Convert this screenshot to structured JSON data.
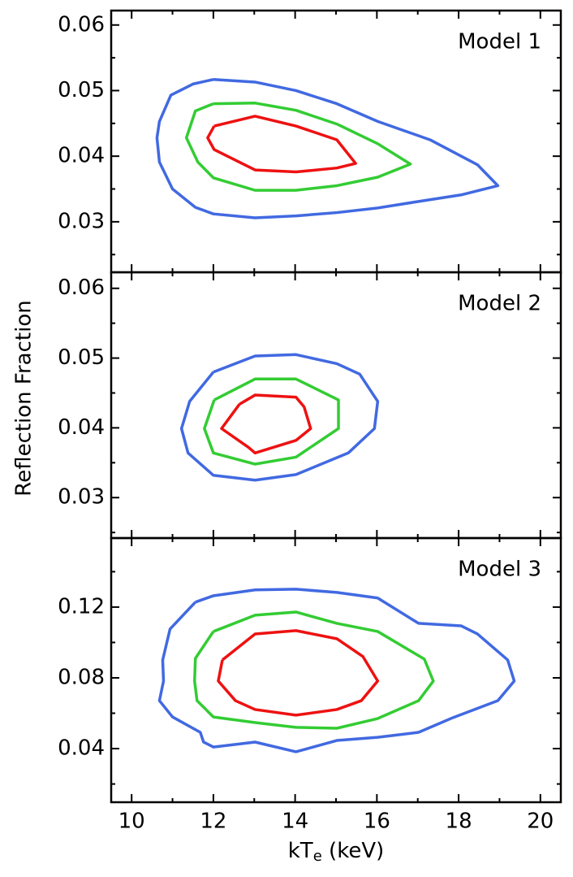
{
  "chart_data": [
    {
      "type": "contour",
      "annotation": "Model 1",
      "xlim": [
        9.5,
        20.5
      ],
      "xticks": [
        10,
        12,
        14,
        16,
        18,
        20
      ],
      "xminorticks": [
        11,
        13,
        15,
        17,
        19
      ],
      "ylim": [
        0.0223,
        0.0622
      ],
      "yticks": [
        0.03,
        0.04,
        0.05,
        0.06
      ],
      "yminorticks": [
        0.025,
        0.035,
        0.045,
        0.055
      ],
      "series": [
        {
          "color": "#4169e1",
          "x": [
            12.0,
            13.02,
            14.02,
            15.02,
            16.02,
            17.3,
            18.46,
            18.96,
            18.06,
            17.02,
            16.02,
            15.02,
            14.02,
            13.02,
            12.0,
            11.56,
            11.0,
            10.68,
            10.62,
            10.68,
            10.96,
            11.5,
            12.0
          ],
          "values": [
            0.0517,
            0.0513,
            0.05,
            0.048,
            0.0453,
            0.0425,
            0.0387,
            0.0355,
            0.0341,
            0.0331,
            0.0321,
            0.0314,
            0.0309,
            0.0306,
            0.0312,
            0.0322,
            0.035,
            0.0391,
            0.0428,
            0.0453,
            0.0493,
            0.051,
            0.0517
          ]
        },
        {
          "color": "#33cc33",
          "x": [
            12.0,
            13.02,
            14.02,
            15.02,
            16.02,
            16.82,
            16.02,
            15.02,
            14.02,
            13.02,
            12.0,
            11.62,
            11.34,
            11.56,
            12.0
          ],
          "values": [
            0.048,
            0.0481,
            0.047,
            0.0449,
            0.0419,
            0.0388,
            0.0368,
            0.0355,
            0.0348,
            0.0348,
            0.0367,
            0.0391,
            0.0428,
            0.0469,
            0.048
          ]
        },
        {
          "color": "#ee1111",
          "x": [
            12.02,
            13.02,
            14.02,
            15.02,
            15.48,
            15.02,
            14.02,
            13.02,
            12.02,
            11.86,
            12.02
          ],
          "values": [
            0.0446,
            0.0461,
            0.0446,
            0.0425,
            0.0389,
            0.0382,
            0.0376,
            0.0379,
            0.041,
            0.0428,
            0.0446
          ]
        }
      ]
    },
    {
      "type": "contour",
      "annotation": "Model 2",
      "ylabel": "Reflection Fraction",
      "xlim": [
        9.5,
        20.5
      ],
      "xticks": [
        10,
        12,
        14,
        16,
        18,
        20
      ],
      "xminorticks": [
        11,
        13,
        15,
        17,
        19
      ],
      "ylim": [
        0.0242,
        0.0623
      ],
      "yticks": [
        0.03,
        0.04,
        0.05,
        0.06
      ],
      "yminorticks": [
        0.025,
        0.035,
        0.045,
        0.055
      ],
      "series": [
        {
          "color": "#4169e1",
          "x": [
            12.0,
            13.02,
            14.02,
            15.02,
            15.58,
            16.02,
            15.94,
            15.3,
            14.02,
            13.02,
            12.0,
            11.38,
            11.22,
            11.42,
            12.0
          ],
          "values": [
            0.048,
            0.0503,
            0.0505,
            0.0492,
            0.0477,
            0.0438,
            0.0399,
            0.0364,
            0.0333,
            0.0325,
            0.0332,
            0.0364,
            0.0399,
            0.0438,
            0.048
          ]
        },
        {
          "color": "#33cc33",
          "x": [
            12.02,
            13.02,
            14.02,
            15.06,
            15.06,
            14.02,
            13.02,
            12.0,
            11.78,
            12.02
          ],
          "values": [
            0.044,
            0.047,
            0.047,
            0.044,
            0.0399,
            0.0358,
            0.0348,
            0.0364,
            0.0399,
            0.044
          ]
        },
        {
          "color": "#ee1111",
          "x": [
            12.64,
            13.02,
            14.02,
            14.22,
            14.38,
            14.02,
            13.02,
            12.86,
            12.2,
            12.64
          ],
          "values": [
            0.0434,
            0.0447,
            0.0444,
            0.043,
            0.0399,
            0.0382,
            0.0364,
            0.0372,
            0.0399,
            0.0434
          ]
        }
      ]
    },
    {
      "type": "contour",
      "annotation": "Model 3",
      "xlabel": [
        "kT",
        "e",
        " (keV)"
      ],
      "xlim": [
        9.5,
        20.5
      ],
      "xticks": [
        10,
        12,
        14,
        16,
        18,
        20
      ],
      "xminorticks": [
        11,
        13,
        15,
        17,
        19
      ],
      "ylim": [
        0.0097,
        0.159
      ],
      "yticks": [
        0.04,
        0.08,
        0.12
      ],
      "yminorticks": [
        0.02,
        0.06,
        0.1,
        0.14
      ],
      "series": [
        {
          "color": "#4169e1",
          "x": [
            11.56,
            12.0,
            13.02,
            14.02,
            15.02,
            16.02,
            17.02,
            18.06,
            18.46,
            19.2,
            19.36,
            18.96,
            17.86,
            17.02,
            16.02,
            15.02,
            14.02,
            13.02,
            12.0,
            11.76,
            11.68,
            11.0,
            10.68,
            10.78,
            10.76,
            10.94,
            11.56
          ],
          "values": [
            0.1228,
            0.1264,
            0.1297,
            0.1301,
            0.1283,
            0.1251,
            0.1108,
            0.1094,
            0.1048,
            0.0901,
            0.0782,
            0.0671,
            0.0575,
            0.0492,
            0.0464,
            0.0446,
            0.0382,
            0.0437,
            0.0409,
            0.0437,
            0.0492,
            0.0579,
            0.0671,
            0.0782,
            0.0901,
            0.1076,
            0.1228
          ]
        },
        {
          "color": "#33cc33",
          "x": [
            12.0,
            13.02,
            14.02,
            15.02,
            16.02,
            17.16,
            17.38,
            17.02,
            16.02,
            15.02,
            14.02,
            13.02,
            12.0,
            11.6,
            11.54,
            11.56,
            12.0
          ],
          "values": [
            0.1062,
            0.1154,
            0.1172,
            0.1108,
            0.1062,
            0.0906,
            0.0782,
            0.0671,
            0.057,
            0.0515,
            0.052,
            0.0547,
            0.0579,
            0.0671,
            0.0782,
            0.091,
            0.1062
          ]
        },
        {
          "color": "#ee1111",
          "x": [
            12.22,
            13.02,
            14.02,
            15.02,
            15.66,
            16.02,
            15.62,
            15.02,
            14.02,
            13.02,
            12.54,
            12.12,
            12.22
          ],
          "values": [
            0.0901,
            0.1048,
            0.1067,
            0.1021,
            0.092,
            0.0782,
            0.0671,
            0.0621,
            0.0589,
            0.0621,
            0.0671,
            0.0782,
            0.0901
          ]
        }
      ]
    }
  ]
}
